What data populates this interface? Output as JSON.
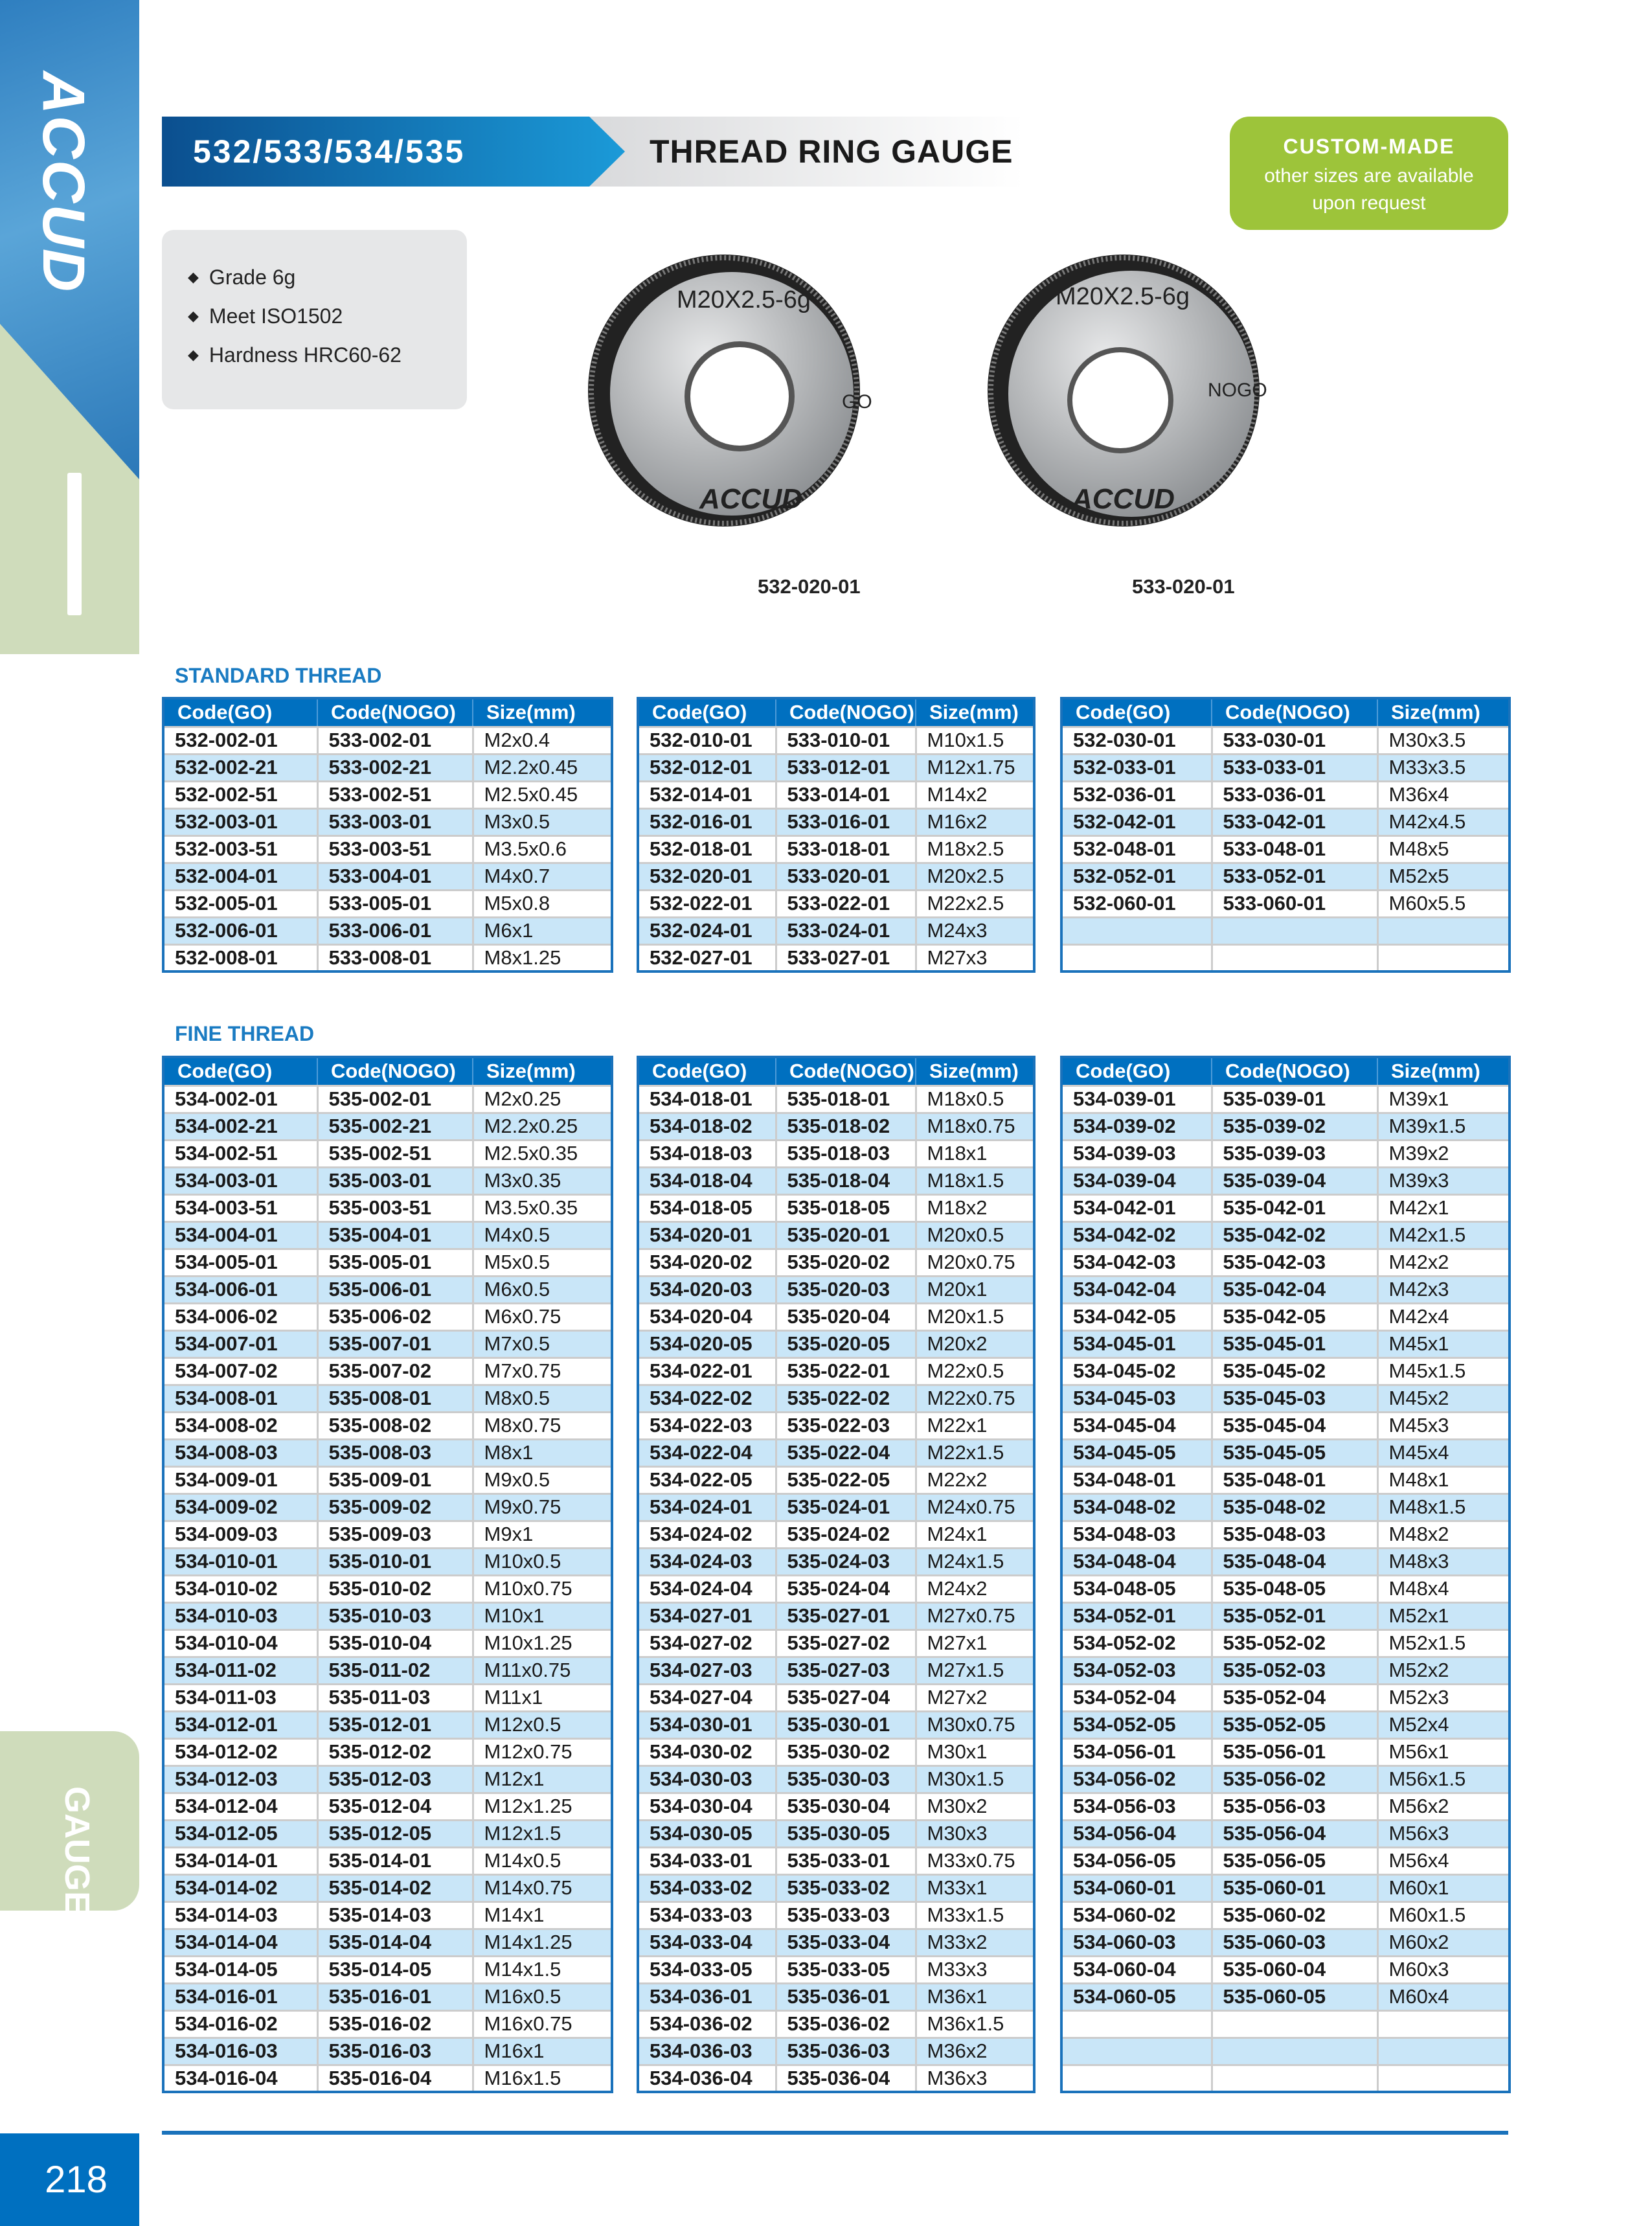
{
  "brand": "ACCUD",
  "sidebar": {
    "tab": "GAUGE",
    "page_number": "218"
  },
  "header": {
    "code": "532/533/534/535",
    "title": "THREAD RING GAUGE"
  },
  "custom": {
    "heading": "CUSTOM-MADE",
    "line1": "other sizes are available",
    "line2": "upon request"
  },
  "features": [
    "Grade 6g",
    "Meet ISO1502",
    "Hardness HRC60-62"
  ],
  "products": [
    {
      "marking": "M20X2.5-6g",
      "type": "GO",
      "brand": "ACCUD",
      "caption": "532-020-01"
    },
    {
      "marking": "M20X2.5-6g",
      "type": "NOGO",
      "brand": "ACCUD",
      "caption": "533-020-01"
    }
  ],
  "colors": {
    "accent": "#0070c0",
    "row_alt": "#c9e6f8",
    "green": "#9dc43a"
  },
  "standard": {
    "label": "STANDARD THREAD",
    "headers": [
      "Code(GO)",
      "Code(NOGO)",
      "Size(mm)"
    ],
    "tables": [
      [
        [
          "532-002-01",
          "533-002-01",
          "M2x0.4"
        ],
        [
          "532-002-21",
          "533-002-21",
          "M2.2x0.45"
        ],
        [
          "532-002-51",
          "533-002-51",
          "M2.5x0.45"
        ],
        [
          "532-003-01",
          "533-003-01",
          "M3x0.5"
        ],
        [
          "532-003-51",
          "533-003-51",
          "M3.5x0.6"
        ],
        [
          "532-004-01",
          "533-004-01",
          "M4x0.7"
        ],
        [
          "532-005-01",
          "533-005-01",
          "M5x0.8"
        ],
        [
          "532-006-01",
          "533-006-01",
          "M6x1"
        ],
        [
          "532-008-01",
          "533-008-01",
          "M8x1.25"
        ]
      ],
      [
        [
          "532-010-01",
          "533-010-01",
          "M10x1.5"
        ],
        [
          "532-012-01",
          "533-012-01",
          "M12x1.75"
        ],
        [
          "532-014-01",
          "533-014-01",
          "M14x2"
        ],
        [
          "532-016-01",
          "533-016-01",
          "M16x2"
        ],
        [
          "532-018-01",
          "533-018-01",
          "M18x2.5"
        ],
        [
          "532-020-01",
          "533-020-01",
          "M20x2.5"
        ],
        [
          "532-022-01",
          "533-022-01",
          "M22x2.5"
        ],
        [
          "532-024-01",
          "533-024-01",
          "M24x3"
        ],
        [
          "532-027-01",
          "533-027-01",
          "M27x3"
        ]
      ],
      [
        [
          "532-030-01",
          "533-030-01",
          "M30x3.5"
        ],
        [
          "532-033-01",
          "533-033-01",
          "M33x3.5"
        ],
        [
          "532-036-01",
          "533-036-01",
          "M36x4"
        ],
        [
          "532-042-01",
          "533-042-01",
          "M42x4.5"
        ],
        [
          "532-048-01",
          "533-048-01",
          "M48x5"
        ],
        [
          "532-052-01",
          "533-052-01",
          "M52x5"
        ],
        [
          "532-060-01",
          "533-060-01",
          "M60x5.5"
        ],
        [
          "",
          "",
          ""
        ],
        [
          "",
          "",
          ""
        ]
      ]
    ]
  },
  "fine": {
    "label": "FINE THREAD",
    "headers": [
      "Code(GO)",
      "Code(NOGO)",
      "Size(mm)"
    ],
    "tables": [
      [
        [
          "534-002-01",
          "535-002-01",
          "M2x0.25"
        ],
        [
          "534-002-21",
          "535-002-21",
          "M2.2x0.25"
        ],
        [
          "534-002-51",
          "535-002-51",
          "M2.5x0.35"
        ],
        [
          "534-003-01",
          "535-003-01",
          "M3x0.35"
        ],
        [
          "534-003-51",
          "535-003-51",
          "M3.5x0.35"
        ],
        [
          "534-004-01",
          "535-004-01",
          "M4x0.5"
        ],
        [
          "534-005-01",
          "535-005-01",
          "M5x0.5"
        ],
        [
          "534-006-01",
          "535-006-01",
          "M6x0.5"
        ],
        [
          "534-006-02",
          "535-006-02",
          "M6x0.75"
        ],
        [
          "534-007-01",
          "535-007-01",
          "M7x0.5"
        ],
        [
          "534-007-02",
          "535-007-02",
          "M7x0.75"
        ],
        [
          "534-008-01",
          "535-008-01",
          "M8x0.5"
        ],
        [
          "534-008-02",
          "535-008-02",
          "M8x0.75"
        ],
        [
          "534-008-03",
          "535-008-03",
          "M8x1"
        ],
        [
          "534-009-01",
          "535-009-01",
          "M9x0.5"
        ],
        [
          "534-009-02",
          "535-009-02",
          "M9x0.75"
        ],
        [
          "534-009-03",
          "535-009-03",
          "M9x1"
        ],
        [
          "534-010-01",
          "535-010-01",
          "M10x0.5"
        ],
        [
          "534-010-02",
          "535-010-02",
          "M10x0.75"
        ],
        [
          "534-010-03",
          "535-010-03",
          "M10x1"
        ],
        [
          "534-010-04",
          "535-010-04",
          "M10x1.25"
        ],
        [
          "534-011-02",
          "535-011-02",
          "M11x0.75"
        ],
        [
          "534-011-03",
          "535-011-03",
          "M11x1"
        ],
        [
          "534-012-01",
          "535-012-01",
          "M12x0.5"
        ],
        [
          "534-012-02",
          "535-012-02",
          "M12x0.75"
        ],
        [
          "534-012-03",
          "535-012-03",
          "M12x1"
        ],
        [
          "534-012-04",
          "535-012-04",
          "M12x1.25"
        ],
        [
          "534-012-05",
          "535-012-05",
          "M12x1.5"
        ],
        [
          "534-014-01",
          "535-014-01",
          "M14x0.5"
        ],
        [
          "534-014-02",
          "535-014-02",
          "M14x0.75"
        ],
        [
          "534-014-03",
          "535-014-03",
          "M14x1"
        ],
        [
          "534-014-04",
          "535-014-04",
          "M14x1.25"
        ],
        [
          "534-014-05",
          "535-014-05",
          "M14x1.5"
        ],
        [
          "534-016-01",
          "535-016-01",
          "M16x0.5"
        ],
        [
          "534-016-02",
          "535-016-02",
          "M16x0.75"
        ],
        [
          "534-016-03",
          "535-016-03",
          "M16x1"
        ],
        [
          "534-016-04",
          "535-016-04",
          "M16x1.5"
        ]
      ],
      [
        [
          "534-018-01",
          "535-018-01",
          "M18x0.5"
        ],
        [
          "534-018-02",
          "535-018-02",
          "M18x0.75"
        ],
        [
          "534-018-03",
          "535-018-03",
          "M18x1"
        ],
        [
          "534-018-04",
          "535-018-04",
          "M18x1.5"
        ],
        [
          "534-018-05",
          "535-018-05",
          "M18x2"
        ],
        [
          "534-020-01",
          "535-020-01",
          "M20x0.5"
        ],
        [
          "534-020-02",
          "535-020-02",
          "M20x0.75"
        ],
        [
          "534-020-03",
          "535-020-03",
          "M20x1"
        ],
        [
          "534-020-04",
          "535-020-04",
          "M20x1.5"
        ],
        [
          "534-020-05",
          "535-020-05",
          "M20x2"
        ],
        [
          "534-022-01",
          "535-022-01",
          "M22x0.5"
        ],
        [
          "534-022-02",
          "535-022-02",
          "M22x0.75"
        ],
        [
          "534-022-03",
          "535-022-03",
          "M22x1"
        ],
        [
          "534-022-04",
          "535-022-04",
          "M22x1.5"
        ],
        [
          "534-022-05",
          "535-022-05",
          "M22x2"
        ],
        [
          "534-024-01",
          "535-024-01",
          "M24x0.75"
        ],
        [
          "534-024-02",
          "535-024-02",
          "M24x1"
        ],
        [
          "534-024-03",
          "535-024-03",
          "M24x1.5"
        ],
        [
          "534-024-04",
          "535-024-04",
          "M24x2"
        ],
        [
          "534-027-01",
          "535-027-01",
          "M27x0.75"
        ],
        [
          "534-027-02",
          "535-027-02",
          "M27x1"
        ],
        [
          "534-027-03",
          "535-027-03",
          "M27x1.5"
        ],
        [
          "534-027-04",
          "535-027-04",
          "M27x2"
        ],
        [
          "534-030-01",
          "535-030-01",
          "M30x0.75"
        ],
        [
          "534-030-02",
          "535-030-02",
          "M30x1"
        ],
        [
          "534-030-03",
          "535-030-03",
          "M30x1.5"
        ],
        [
          "534-030-04",
          "535-030-04",
          "M30x2"
        ],
        [
          "534-030-05",
          "535-030-05",
          "M30x3"
        ],
        [
          "534-033-01",
          "535-033-01",
          "M33x0.75"
        ],
        [
          "534-033-02",
          "535-033-02",
          "M33x1"
        ],
        [
          "534-033-03",
          "535-033-03",
          "M33x1.5"
        ],
        [
          "534-033-04",
          "535-033-04",
          "M33x2"
        ],
        [
          "534-033-05",
          "535-033-05",
          "M33x3"
        ],
        [
          "534-036-01",
          "535-036-01",
          "M36x1"
        ],
        [
          "534-036-02",
          "535-036-02",
          "M36x1.5"
        ],
        [
          "534-036-03",
          "535-036-03",
          "M36x2"
        ],
        [
          "534-036-04",
          "535-036-04",
          "M36x3"
        ]
      ],
      [
        [
          "534-039-01",
          "535-039-01",
          "M39x1"
        ],
        [
          "534-039-02",
          "535-039-02",
          "M39x1.5"
        ],
        [
          "534-039-03",
          "535-039-03",
          "M39x2"
        ],
        [
          "534-039-04",
          "535-039-04",
          "M39x3"
        ],
        [
          "534-042-01",
          "535-042-01",
          "M42x1"
        ],
        [
          "534-042-02",
          "535-042-02",
          "M42x1.5"
        ],
        [
          "534-042-03",
          "535-042-03",
          "M42x2"
        ],
        [
          "534-042-04",
          "535-042-04",
          "M42x3"
        ],
        [
          "534-042-05",
          "535-042-05",
          "M42x4"
        ],
        [
          "534-045-01",
          "535-045-01",
          "M45x1"
        ],
        [
          "534-045-02",
          "535-045-02",
          "M45x1.5"
        ],
        [
          "534-045-03",
          "535-045-03",
          "M45x2"
        ],
        [
          "534-045-04",
          "535-045-04",
          "M45x3"
        ],
        [
          "534-045-05",
          "535-045-05",
          "M45x4"
        ],
        [
          "534-048-01",
          "535-048-01",
          "M48x1"
        ],
        [
          "534-048-02",
          "535-048-02",
          "M48x1.5"
        ],
        [
          "534-048-03",
          "535-048-03",
          "M48x2"
        ],
        [
          "534-048-04",
          "535-048-04",
          "M48x3"
        ],
        [
          "534-048-05",
          "535-048-05",
          "M48x4"
        ],
        [
          "534-052-01",
          "535-052-01",
          "M52x1"
        ],
        [
          "534-052-02",
          "535-052-02",
          "M52x1.5"
        ],
        [
          "534-052-03",
          "535-052-03",
          "M52x2"
        ],
        [
          "534-052-04",
          "535-052-04",
          "M52x3"
        ],
        [
          "534-052-05",
          "535-052-05",
          "M52x4"
        ],
        [
          "534-056-01",
          "535-056-01",
          "M56x1"
        ],
        [
          "534-056-02",
          "535-056-02",
          "M56x1.5"
        ],
        [
          "534-056-03",
          "535-056-03",
          "M56x2"
        ],
        [
          "534-056-04",
          "535-056-04",
          "M56x3"
        ],
        [
          "534-056-05",
          "535-056-05",
          "M56x4"
        ],
        [
          "534-060-01",
          "535-060-01",
          "M60x1"
        ],
        [
          "534-060-02",
          "535-060-02",
          "M60x1.5"
        ],
        [
          "534-060-03",
          "535-060-03",
          "M60x2"
        ],
        [
          "534-060-04",
          "535-060-04",
          "M60x3"
        ],
        [
          "534-060-05",
          "535-060-05",
          "M60x4"
        ],
        [
          "",
          "",
          ""
        ],
        [
          "",
          "",
          ""
        ],
        [
          "",
          "",
          ""
        ]
      ]
    ]
  }
}
